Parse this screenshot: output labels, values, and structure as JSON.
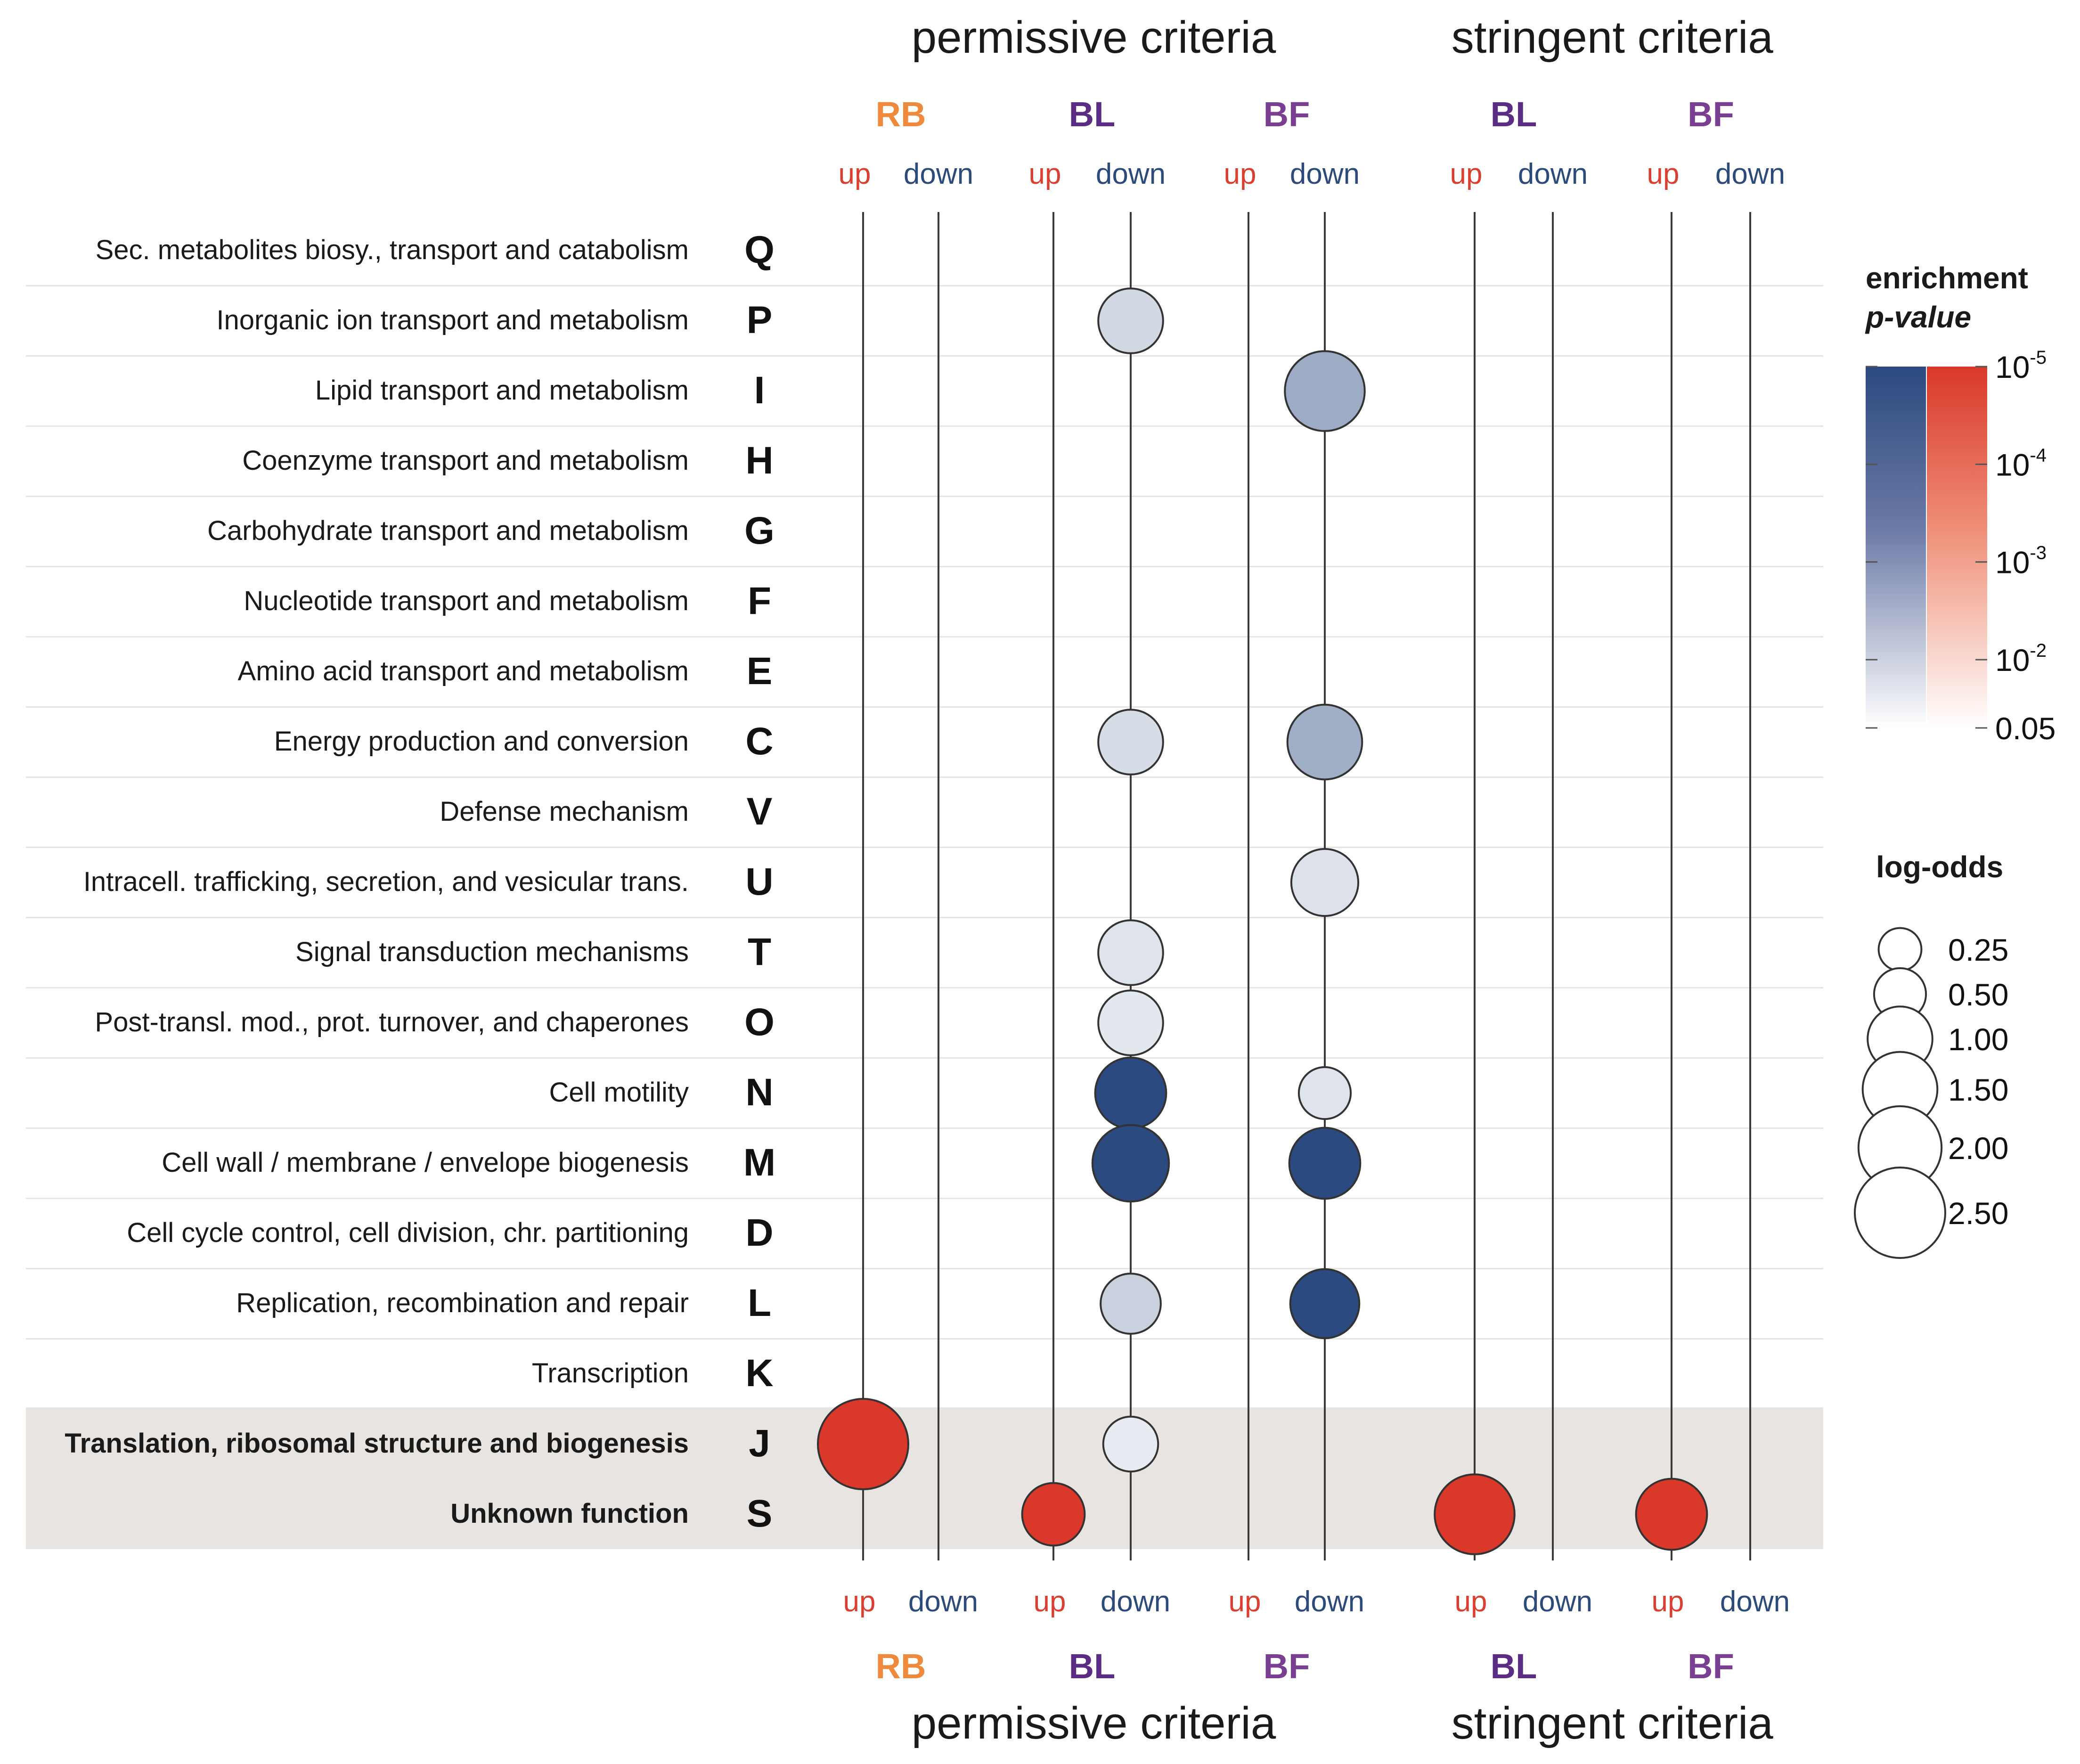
{
  "chart_data": {
    "type": "bubble-matrix",
    "groups": [
      {
        "name": "permissive criteria",
        "samples": [
          "RB",
          "BL",
          "BF"
        ]
      },
      {
        "name": "stringent criteria",
        "samples": [
          "BL",
          "BF"
        ]
      }
    ],
    "samples": [
      {
        "name": "RB",
        "group": "permissive criteria",
        "color": "#ef8a3c"
      },
      {
        "name": "BL",
        "group": "permissive criteria",
        "color": "#5b2c83"
      },
      {
        "name": "BF",
        "group": "permissive criteria",
        "color": "#7b3f92"
      },
      {
        "name": "BL",
        "group": "stringent criteria",
        "color": "#5b2c83"
      },
      {
        "name": "BF",
        "group": "stringent criteria",
        "color": "#7b3f92"
      }
    ],
    "columns": [
      {
        "sample": 0,
        "dir": "up"
      },
      {
        "sample": 0,
        "dir": "down"
      },
      {
        "sample": 1,
        "dir": "up"
      },
      {
        "sample": 1,
        "dir": "down"
      },
      {
        "sample": 2,
        "dir": "up"
      },
      {
        "sample": 2,
        "dir": "down"
      },
      {
        "sample": 3,
        "dir": "up"
      },
      {
        "sample": 3,
        "dir": "down"
      },
      {
        "sample": 4,
        "dir": "up"
      },
      {
        "sample": 4,
        "dir": "down"
      }
    ],
    "direction_labels": {
      "up": "up",
      "down": "down"
    },
    "direction_colors": {
      "up": "#d94032",
      "down": "#2c4a7a"
    },
    "categories": [
      {
        "label": "Sec. metabolites biosy., transport and catabolism",
        "code": "Q",
        "bold": false
      },
      {
        "label": "Inorganic ion transport and metabolism",
        "code": "P",
        "bold": false
      },
      {
        "label": "Lipid transport and metabolism",
        "code": "I",
        "bold": false
      },
      {
        "label": "Coenzyme transport and metabolism",
        "code": "H",
        "bold": false
      },
      {
        "label": "Carbohydrate transport and metabolism",
        "code": "G",
        "bold": false
      },
      {
        "label": "Nucleotide transport and metabolism",
        "code": "F",
        "bold": false
      },
      {
        "label": "Amino acid transport and metabolism",
        "code": "E",
        "bold": false
      },
      {
        "label": "Energy production and conversion",
        "code": "C",
        "bold": false
      },
      {
        "label": "Defense mechanism",
        "code": "V",
        "bold": false
      },
      {
        "label": "Intracell. trafficking, secretion, and vesicular trans.",
        "code": "U",
        "bold": false
      },
      {
        "label": "Signal transduction mechanisms",
        "code": "T",
        "bold": false
      },
      {
        "label": "Post-transl. mod., prot. turnover, and chaperones",
        "code": "O",
        "bold": false
      },
      {
        "label": "Cell motility",
        "code": "N",
        "bold": false
      },
      {
        "label": "Cell wall / membrane / envelope biogenesis",
        "code": "M",
        "bold": false
      },
      {
        "label": "Cell cycle control, cell division, chr. partitioning",
        "code": "D",
        "bold": false
      },
      {
        "label": "Replication, recombination and repair",
        "code": "L",
        "bold": false
      },
      {
        "label": "Transcription",
        "code": "K",
        "bold": false
      },
      {
        "label": "Translation, ribosomal structure and biogenesis",
        "code": "J",
        "bold": true
      },
      {
        "label": "Unknown function",
        "code": "S",
        "bold": true
      }
    ],
    "highlighted_rows": [
      "J",
      "S"
    ],
    "points": [
      {
        "row": "P",
        "col": 3,
        "p_value": 0.015,
        "log_odds": 1.0
      },
      {
        "row": "I",
        "col": 5,
        "p_value": 0.0012,
        "log_odds": 1.8
      },
      {
        "row": "C",
        "col": 3,
        "p_value": 0.02,
        "log_odds": 1.0
      },
      {
        "row": "C",
        "col": 5,
        "p_value": 0.0015,
        "log_odds": 1.5
      },
      {
        "row": "U",
        "col": 5,
        "p_value": 0.025,
        "log_odds": 1.1
      },
      {
        "row": "T",
        "col": 3,
        "p_value": 0.03,
        "log_odds": 1.0
      },
      {
        "row": "O",
        "col": 3,
        "p_value": 0.035,
        "log_odds": 1.0
      },
      {
        "row": "N",
        "col": 3,
        "p_value": 1e-05,
        "log_odds": 1.3
      },
      {
        "row": "N",
        "col": 5,
        "p_value": 0.03,
        "log_odds": 0.5
      },
      {
        "row": "M",
        "col": 3,
        "p_value": 1e-05,
        "log_odds": 1.6
      },
      {
        "row": "M",
        "col": 5,
        "p_value": 1e-05,
        "log_odds": 1.3
      },
      {
        "row": "L",
        "col": 3,
        "p_value": 0.01,
        "log_odds": 0.8
      },
      {
        "row": "L",
        "col": 5,
        "p_value": 1e-05,
        "log_odds": 1.2
      },
      {
        "row": "J",
        "col": 0,
        "p_value": 1e-05,
        "log_odds": 2.5
      },
      {
        "row": "J",
        "col": 3,
        "p_value": 0.045,
        "log_odds": 0.6
      },
      {
        "row": "S",
        "col": 2,
        "p_value": 1e-05,
        "log_odds": 0.9
      },
      {
        "row": "S",
        "col": 6,
        "p_value": 1e-05,
        "log_odds": 1.8
      },
      {
        "row": "S",
        "col": 8,
        "p_value": 1e-05,
        "log_odds": 1.3
      }
    ],
    "color_legend": {
      "title_line1": "enrichment",
      "title_line2": "p-value",
      "scale": "log10",
      "range": [
        1e-05,
        0.05
      ],
      "tick_values": [
        1e-05,
        0.0001,
        0.001,
        0.01,
        0.05
      ],
      "ticks": [
        {
          "base": "10",
          "exp": "-5"
        },
        {
          "base": "10",
          "exp": "-4"
        },
        {
          "base": "10",
          "exp": "-3"
        },
        {
          "base": "10",
          "exp": "-2"
        },
        {
          "base": "0.05",
          "exp": ""
        }
      ],
      "down_colors": [
        "#2b4a7f",
        "#ffffff"
      ],
      "up_colors": [
        "#d9382a",
        "#ffffff"
      ]
    },
    "size_legend": {
      "title": "log-odds",
      "values": [
        0.25,
        0.5,
        1.0,
        1.5,
        2.0,
        2.5
      ],
      "labels": [
        "0.25",
        "0.50",
        "1.00",
        "1.50",
        "2.00",
        "2.50"
      ]
    }
  }
}
